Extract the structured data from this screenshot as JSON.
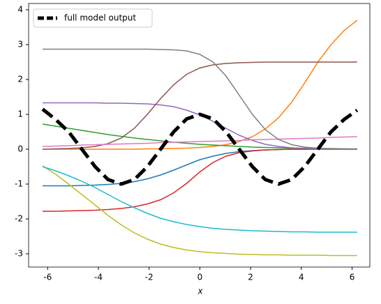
{
  "chart_data": {
    "type": "line",
    "x_label": "x",
    "x": [
      -6.2,
      -5.68,
      -5.17,
      -4.65,
      -4.13,
      -3.62,
      -3.1,
      -2.58,
      -2.07,
      -1.55,
      -1.03,
      -0.52,
      0,
      0.52,
      1.03,
      1.55,
      2.07,
      2.58,
      3.1,
      3.62,
      4.13,
      4.65,
      5.17,
      5.68,
      6.2
    ],
    "xlim": [
      -6.75,
      6.7
    ],
    "xticks": [
      -6,
      -4,
      -2,
      0,
      2,
      4,
      6
    ],
    "ylim": [
      -3.38,
      4.18
    ],
    "yticks": [
      -3,
      -2,
      -1,
      0,
      1,
      2,
      3,
      4
    ],
    "legend": "upper left",
    "series": [
      {
        "color": "#1f77b4",
        "values": [
          -1.05,
          -1.05,
          -1.05,
          -1.04,
          -1.03,
          -1.01,
          -0.98,
          -0.93,
          -0.85,
          -0.74,
          -0.6,
          -0.45,
          -0.3,
          -0.2,
          -0.12,
          -0.07,
          -0.04,
          -0.02,
          -0.01,
          0,
          0,
          0,
          0,
          0,
          0
        ]
      },
      {
        "color": "#ff7f0e",
        "values": [
          0,
          0,
          0,
          0,
          0,
          0,
          0,
          0,
          0.01,
          0.01,
          0.02,
          0.03,
          0.05,
          0.08,
          0.13,
          0.22,
          0.36,
          0.58,
          0.9,
          1.35,
          1.9,
          2.5,
          3.0,
          3.4,
          3.7
        ]
      },
      {
        "color": "#2ca02c",
        "values": [
          0.72,
          0.66,
          0.6,
          0.54,
          0.48,
          0.42,
          0.37,
          0.32,
          0.28,
          0.24,
          0.2,
          0.17,
          0.14,
          0.12,
          0.1,
          0.08,
          0.06,
          0.05,
          0.04,
          0.03,
          0.03,
          0.02,
          0.02,
          0.01,
          0.01
        ]
      },
      {
        "color": "#d62728",
        "values": [
          -1.78,
          -1.78,
          -1.77,
          -1.76,
          -1.75,
          -1.73,
          -1.7,
          -1.65,
          -1.57,
          -1.45,
          -1.25,
          -0.98,
          -0.65,
          -0.38,
          -0.2,
          -0.1,
          -0.05,
          -0.02,
          -0.01,
          0,
          0,
          0,
          0,
          0,
          0
        ]
      },
      {
        "color": "#9467bd",
        "values": [
          1.33,
          1.33,
          1.33,
          1.33,
          1.33,
          1.32,
          1.32,
          1.31,
          1.3,
          1.27,
          1.22,
          1.12,
          0.98,
          0.8,
          0.6,
          0.4,
          0.25,
          0.14,
          0.08,
          0.04,
          0.02,
          0.01,
          0,
          0,
          0
        ]
      },
      {
        "color": "#8c564b",
        "values": [
          0,
          0.01,
          0.02,
          0.04,
          0.08,
          0.16,
          0.32,
          0.6,
          1.0,
          1.45,
          1.85,
          2.15,
          2.33,
          2.42,
          2.46,
          2.48,
          2.49,
          2.5,
          2.5,
          2.5,
          2.5,
          2.5,
          2.5,
          2.5,
          2.5
        ]
      },
      {
        "color": "#e377c2",
        "values": [
          0.08,
          0.09,
          0.1,
          0.12,
          0.13,
          0.14,
          0.15,
          0.16,
          0.17,
          0.19,
          0.2,
          0.21,
          0.22,
          0.23,
          0.24,
          0.25,
          0.27,
          0.28,
          0.29,
          0.3,
          0.31,
          0.32,
          0.34,
          0.35,
          0.36
        ]
      },
      {
        "color": "#7f7f7f",
        "values": [
          2.87,
          2.87,
          2.87,
          2.87,
          2.87,
          2.87,
          2.87,
          2.87,
          2.87,
          2.86,
          2.85,
          2.82,
          2.72,
          2.5,
          2.1,
          1.55,
          1.0,
          0.56,
          0.28,
          0.13,
          0.06,
          0.03,
          0.01,
          0.01,
          0
        ]
      },
      {
        "color": "#bcbd22",
        "values": [
          -0.48,
          -0.72,
          -1.0,
          -1.3,
          -1.6,
          -1.9,
          -2.17,
          -2.4,
          -2.58,
          -2.72,
          -2.82,
          -2.89,
          -2.94,
          -2.97,
          -2.99,
          -3.01,
          -3.02,
          -3.03,
          -3.03,
          -3.04,
          -3.04,
          -3.04,
          -3.05,
          -3.05,
          -3.05
        ]
      },
      {
        "color": "#17becf",
        "values": [
          -0.5,
          -0.62,
          -0.76,
          -0.92,
          -1.1,
          -1.3,
          -1.5,
          -1.68,
          -1.84,
          -1.98,
          -2.08,
          -2.16,
          -2.22,
          -2.27,
          -2.3,
          -2.32,
          -2.34,
          -2.35,
          -2.36,
          -2.37,
          -2.37,
          -2.38,
          -2.38,
          -2.38,
          -2.38
        ]
      },
      {
        "name": "full model output",
        "color": "#000000",
        "dashed": true,
        "width": 5,
        "values": [
          1.15,
          0.85,
          0.5,
          0,
          -0.5,
          -0.87,
          -1,
          -0.87,
          -0.5,
          0,
          0.5,
          0.87,
          1,
          0.87,
          0.5,
          0,
          -0.5,
          -0.87,
          -1,
          -0.87,
          -0.5,
          0,
          0.5,
          0.85,
          1.12
        ]
      }
    ]
  }
}
